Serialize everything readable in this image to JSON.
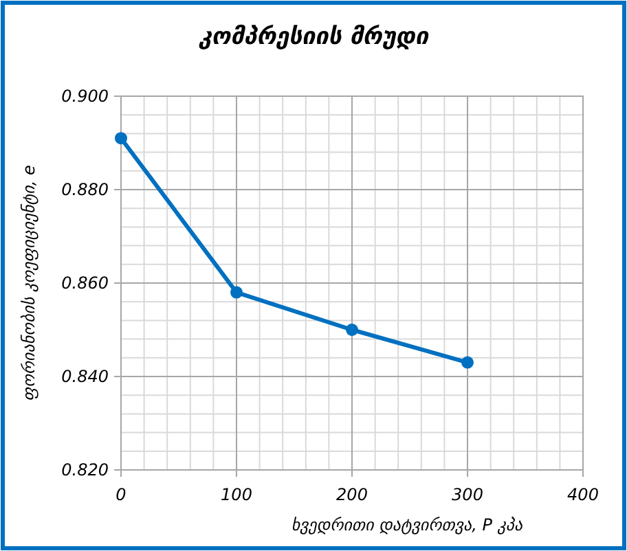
{
  "chart_data": {
    "type": "line",
    "title": "კომპრესიის მრუდი",
    "xlabel": "ხვედრითი დატვირთვა, P კპა",
    "ylabel": "ფორიანობის კოეფიციენტი, e",
    "x": [
      0,
      100,
      200,
      300
    ],
    "series": [
      {
        "color": "#0070c0",
        "values": [
          0.891,
          0.858,
          0.85,
          0.843
        ]
      }
    ],
    "xlim": [
      0,
      400
    ],
    "xticks": [
      0,
      100,
      200,
      300,
      400
    ],
    "ylim": [
      0.82,
      0.9
    ],
    "yticks": [
      {
        "value": 0.82,
        "label": "0.820"
      },
      {
        "value": 0.84,
        "label": "0.840"
      },
      {
        "value": 0.86,
        "label": "0.860"
      },
      {
        "value": 0.88,
        "label": "0.880"
      },
      {
        "value": 0.9,
        "label": "0.900"
      }
    ],
    "grid": true,
    "marker": "circle",
    "line_style": "solid"
  }
}
